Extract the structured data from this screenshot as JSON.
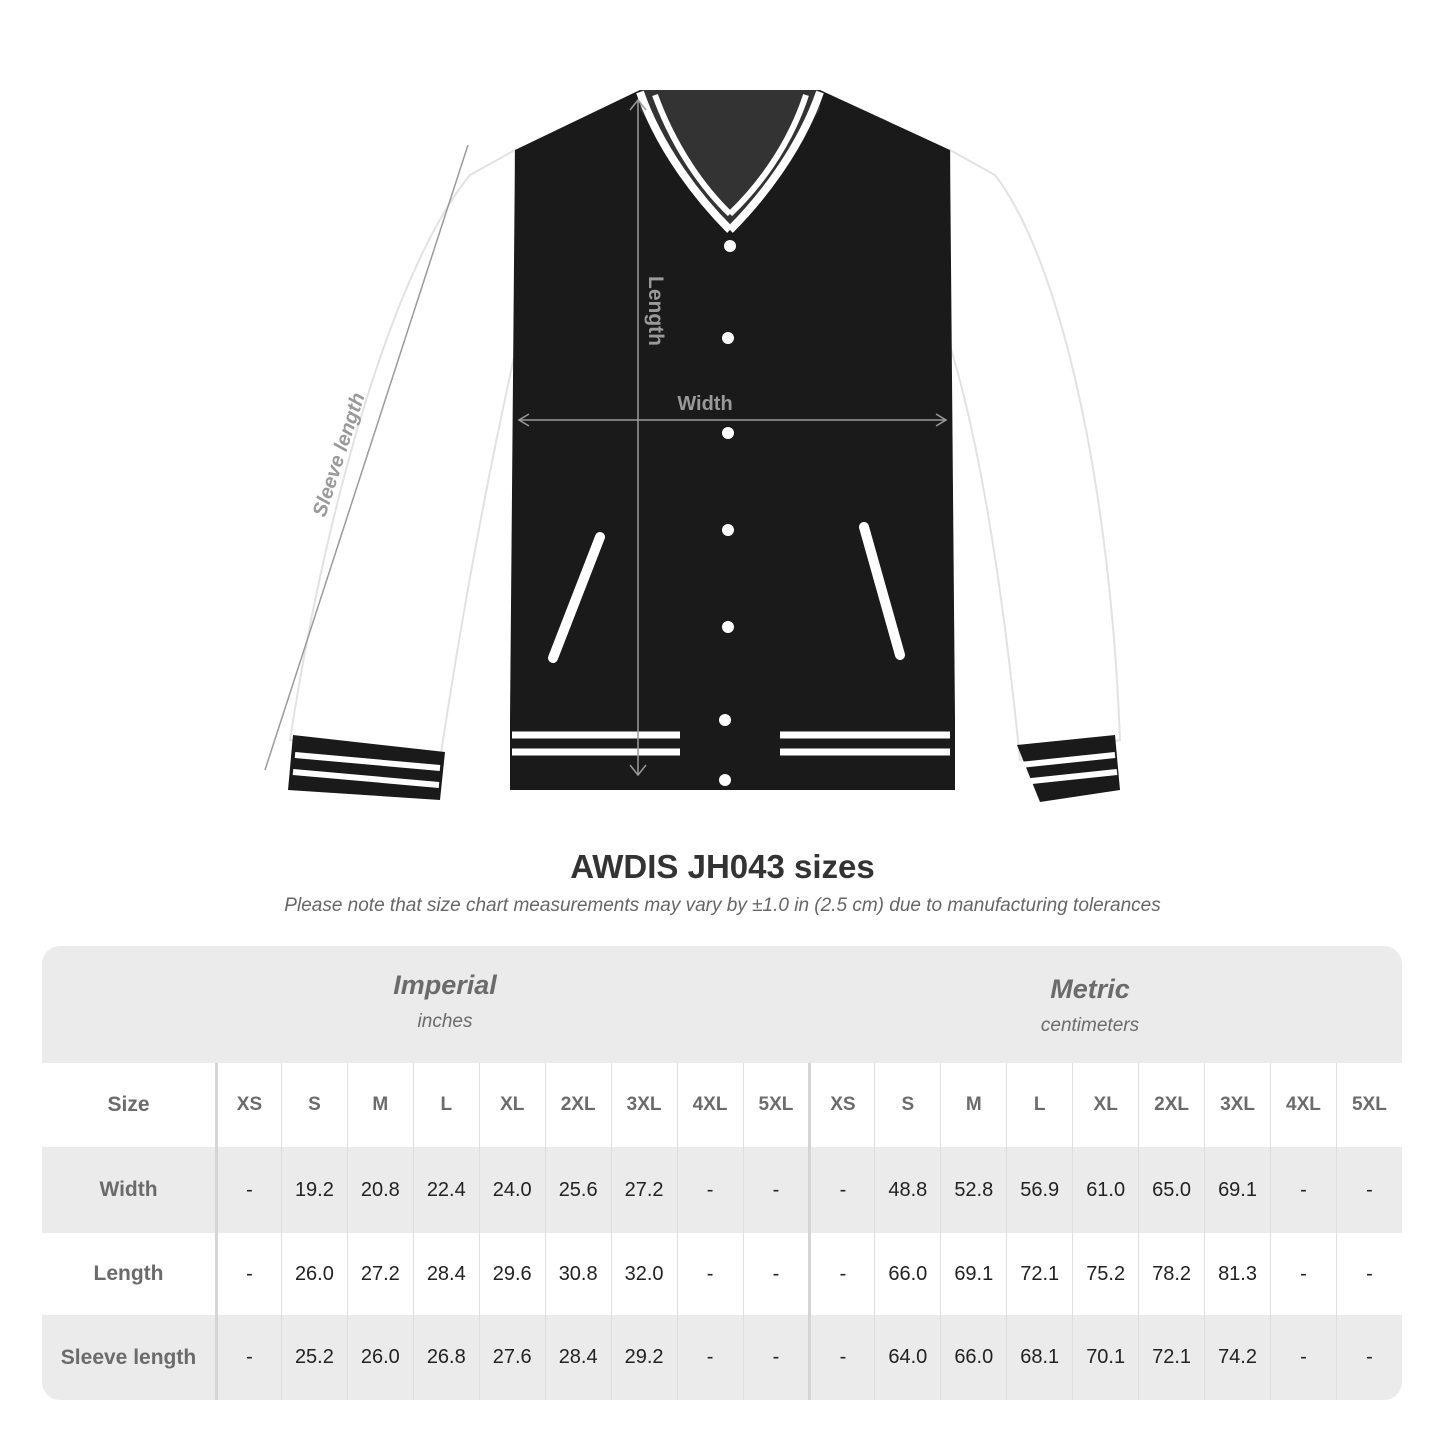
{
  "diagram": {
    "labels": {
      "length": "Length",
      "width": "Width",
      "sleeve": "Sleeve length"
    }
  },
  "title": "AWDIS JH043 sizes",
  "subtitle": "Please note that size chart measurements may vary by ±1.0 in (2.5 cm) due to manufacturing tolerances",
  "table": {
    "imperial": {
      "name": "Imperial",
      "unit": "inches"
    },
    "metric": {
      "name": "Metric",
      "unit": "centimeters"
    },
    "size_label": "Size",
    "sizes": [
      "XS",
      "S",
      "M",
      "L",
      "XL",
      "2XL",
      "3XL",
      "4XL",
      "5XL"
    ],
    "rows": [
      {
        "label": "Width",
        "imperial": [
          "-",
          "19.2",
          "20.8",
          "22.4",
          "24.0",
          "25.6",
          "27.2",
          "-",
          "-"
        ],
        "metric": [
          "-",
          "48.8",
          "52.8",
          "56.9",
          "61.0",
          "65.0",
          "69.1",
          "-",
          "-"
        ]
      },
      {
        "label": "Length",
        "imperial": [
          "-",
          "26.0",
          "27.2",
          "28.4",
          "29.6",
          "30.8",
          "32.0",
          "-",
          "-"
        ],
        "metric": [
          "-",
          "66.0",
          "69.1",
          "72.1",
          "75.2",
          "78.2",
          "81.3",
          "-",
          "-"
        ]
      },
      {
        "label": "Sleeve length",
        "imperial": [
          "-",
          "25.2",
          "26.0",
          "26.8",
          "27.6",
          "28.4",
          "29.2",
          "-",
          "-"
        ],
        "metric": [
          "-",
          "64.0",
          "66.0",
          "68.1",
          "70.1",
          "72.1",
          "74.2",
          "-",
          "-"
        ]
      }
    ]
  },
  "colors": {
    "jacket_body": "#1a1a1a",
    "sleeves": "#ffffff",
    "measure_line": "#9a9a9a",
    "table_gray": "#ebebeb"
  }
}
